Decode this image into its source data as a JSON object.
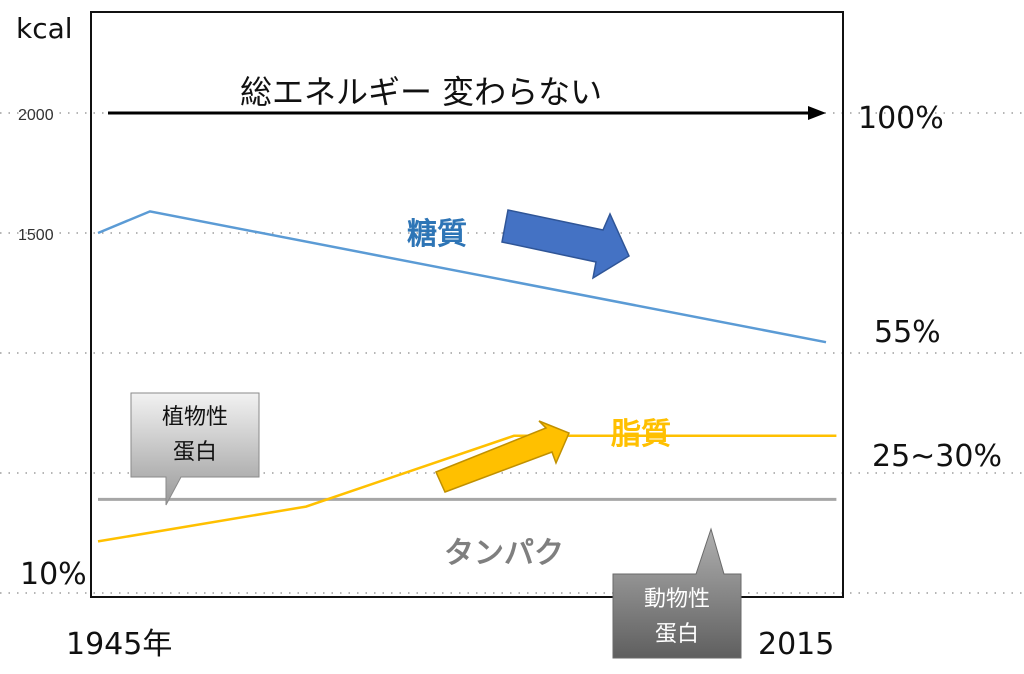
{
  "chart_data": {
    "type": "line",
    "ylabel": "kcal",
    "y_ticks": [
      "2000",
      "1500"
    ],
    "x_labels": [
      "1945年",
      "2015"
    ],
    "series": [
      {
        "name": "糖質",
        "color": "#5B9BD5",
        "points": [
          [
            1945,
            1500
          ],
          [
            1950,
            1590
          ],
          [
            2015,
            1045
          ]
        ]
      },
      {
        "name": "脂質",
        "color": "#FFC000",
        "points": [
          [
            1945,
            215
          ],
          [
            1965,
            360
          ],
          [
            1985,
            655
          ],
          [
            2016,
            655
          ]
        ]
      },
      {
        "name": "タンパク",
        "color": "#A6A6A6",
        "points": [
          [
            1945,
            390
          ],
          [
            2016,
            390
          ]
        ]
      }
    ],
    "total_energy": {
      "label": "総エネルギー 変わらない",
      "value": 2000
    },
    "right_labels": [
      "100%",
      "55%",
      "25~30%"
    ],
    "left_label": "10%",
    "callouts": {
      "plant_protein": "植物性\n蛋白",
      "animal_protein": "動物性\n蛋白"
    },
    "colors": {
      "sugar_arrow": "#4472C4",
      "fat_arrow": "#FFC000",
      "sugar_label": "#2E75B6",
      "fat_label": "#FFC000",
      "protein_label": "#7F7F7F"
    }
  }
}
